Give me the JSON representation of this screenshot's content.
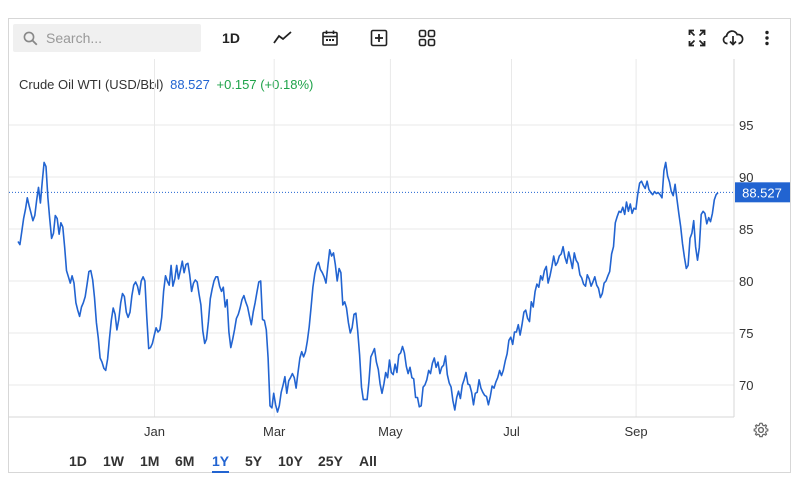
{
  "search": {
    "placeholder": "Search..."
  },
  "toolbar": {
    "interval_label": "1D",
    "icons": [
      "search-icon",
      "line-chart-icon",
      "calendar-icon",
      "add-indicator-icon",
      "layout-grid-icon",
      "fullscreen-icon",
      "download-icon",
      "more-icon"
    ]
  },
  "header": {
    "instrument": "Crude Oil WTI (USD/Bbl)",
    "last": "88.527",
    "change": "+0.157 (+0.18%)"
  },
  "range_buttons": [
    "1D",
    "1W",
    "1M",
    "6M",
    "1Y",
    "5Y",
    "10Y",
    "25Y",
    "All"
  ],
  "active_range": "1Y",
  "colors": {
    "line": "#2264d1",
    "price_tag_bg": "#2264d1",
    "positive": "#1fa34a",
    "grid": "#e9e9e9",
    "axis_text": "#333333"
  },
  "chart_data": {
    "type": "line",
    "title": "Crude Oil WTI (USD/Bbl)",
    "ylim": [
      65,
      100
    ],
    "yticks": [
      70,
      75,
      80,
      85,
      90,
      95
    ],
    "x_ticks": [
      {
        "label": "Jan",
        "t": 0.195
      },
      {
        "label": "Mar",
        "t": 0.366
      },
      {
        "label": "May",
        "t": 0.532
      },
      {
        "label": "Jul",
        "t": 0.705
      },
      {
        "label": "Sep",
        "t": 0.883
      }
    ],
    "last_value": 88.527,
    "last_label": "88.527",
    "series": [
      {
        "values": [
          83.8,
          83.5,
          84.7,
          86.0,
          86.9,
          88.0,
          87.2,
          86.5,
          85.8,
          86.3,
          87.8,
          89.0,
          87.5,
          89.6,
          91.4,
          91.0,
          88.0,
          86.0,
          84.1,
          84.6,
          86.3,
          86.0,
          84.5,
          85.6,
          85.2,
          83.2,
          81.0,
          80.4,
          79.8,
          80.5,
          79.8,
          77.9,
          77.2,
          76.6,
          77.5,
          77.9,
          78.5,
          79.7,
          80.9,
          81.0,
          80.1,
          78.4,
          76.0,
          74.5,
          72.6,
          72.2,
          71.6,
          71.4,
          72.5,
          74.5,
          76.2,
          77.4,
          76.8,
          75.3,
          76.3,
          77.9,
          78.8,
          78.5,
          77.0,
          76.5,
          77.0,
          78.6,
          79.6,
          79.9,
          79.5,
          78.7,
          80.0,
          80.4,
          80.0,
          76.5,
          73.5,
          73.6,
          74.0,
          74.8,
          75.5,
          75.1,
          75.3,
          76.5,
          79.0,
          80.5,
          80.0,
          79.6,
          81.5,
          79.5,
          80.2,
          81.5,
          80.2,
          81.0,
          81.9,
          80.8,
          81.6,
          81.7,
          80.6,
          79.0,
          79.8,
          80.1,
          79.9,
          78.7,
          77.7,
          75.2,
          74.0,
          74.4,
          76.1,
          78.3,
          79.2,
          80.0,
          80.4,
          80.4,
          79.5,
          79.0,
          79.4,
          77.5,
          78.2,
          75.1,
          73.6,
          74.4,
          75.3,
          76.4,
          76.8,
          77.4,
          78.2,
          78.6,
          78.0,
          77.5,
          76.6,
          75.8,
          77.0,
          77.9,
          78.9,
          79.9,
          80.0,
          76.3,
          76.2,
          75.3,
          72.6,
          68.0,
          67.8,
          69.2,
          68.1,
          67.4,
          68.0,
          69.3,
          70.0,
          70.8,
          69.2,
          70.4,
          70.7,
          71.1,
          70.7,
          69.7,
          71.2,
          72.6,
          73.2,
          72.7,
          73.2,
          74.2,
          75.6,
          77.5,
          79.4,
          80.7,
          81.5,
          81.8,
          81.1,
          80.8,
          80.4,
          79.8,
          81.5,
          83.0,
          82.4,
          82.7,
          81.6,
          80.0,
          81.2,
          80.8,
          77.7,
          78.0,
          77.4,
          76.0,
          75.0,
          75.5,
          76.8,
          76.9,
          75.2,
          72.9,
          69.8,
          68.6,
          68.6,
          68.6,
          70.3,
          72.7,
          73.1,
          73.5,
          72.2,
          71.5,
          70.1,
          69.2,
          70.1,
          71.2,
          70.7,
          72.4,
          71.2,
          71.0,
          72.0,
          71.2,
          72.9,
          73.1,
          73.7,
          73.1,
          71.8,
          71.1,
          71.7,
          70.7,
          70.6,
          68.8,
          68.8,
          67.9,
          68.0,
          69.8,
          70.0,
          70.5,
          71.4,
          71.1,
          72.1,
          72.6,
          71.7,
          72.2,
          71.1,
          71.7,
          71.9,
          72.8,
          71.0,
          70.2,
          69.8,
          68.5,
          67.6,
          68.8,
          69.4,
          68.7,
          70.0,
          70.5,
          71.2,
          70.1,
          70.0,
          69.3,
          68.1,
          69.2,
          69.3,
          70.5,
          69.7,
          69.3,
          69.0,
          68.9,
          68.1,
          68.9,
          69.9,
          69.7,
          70.3,
          70.7,
          71.4,
          70.9,
          71.4,
          72.3,
          73.0,
          74.3,
          74.6,
          73.9,
          75.1,
          75.1,
          75.8,
          74.8,
          75.8,
          77.0,
          77.2,
          76.4,
          76.1,
          78.0,
          77.5,
          79.0,
          79.7,
          79.4,
          80.5,
          80.1,
          81.0,
          81.4,
          79.8,
          80.5,
          81.4,
          82.4,
          81.5,
          81.8,
          82.4,
          82.6,
          83.3,
          82.3,
          81.7,
          82.8,
          82.1,
          81.2,
          82.7,
          82.0,
          81.7,
          80.6,
          80.3,
          79.7,
          79.5,
          80.6,
          80.2,
          79.5,
          79.9,
          80.4,
          79.6,
          79.3,
          78.4,
          78.8,
          79.8,
          80.0,
          80.5,
          80.9,
          82.6,
          83.3,
          85.6,
          86.2,
          86.7,
          86.6,
          87.1,
          86.4,
          87.6,
          86.7,
          87.4,
          86.5,
          87.0,
          86.9,
          88.3,
          89.4,
          89.6,
          89.2,
          88.9,
          89.6,
          88.8,
          88.5,
          88.3,
          88.6,
          88.4,
          88.5,
          88.3,
          88.0,
          90.6,
          91.4,
          90.1,
          89.5,
          88.6,
          88.2,
          89.3,
          87.9,
          86.5,
          85.2,
          83.6,
          82.3,
          81.2,
          81.5,
          84.1,
          84.6,
          85.8,
          83.3,
          82.0,
          83.2,
          86.4,
          86.7,
          86.5,
          85.5,
          86.1,
          85.7,
          86.5,
          87.8,
          88.3,
          88.5
        ]
      }
    ]
  }
}
